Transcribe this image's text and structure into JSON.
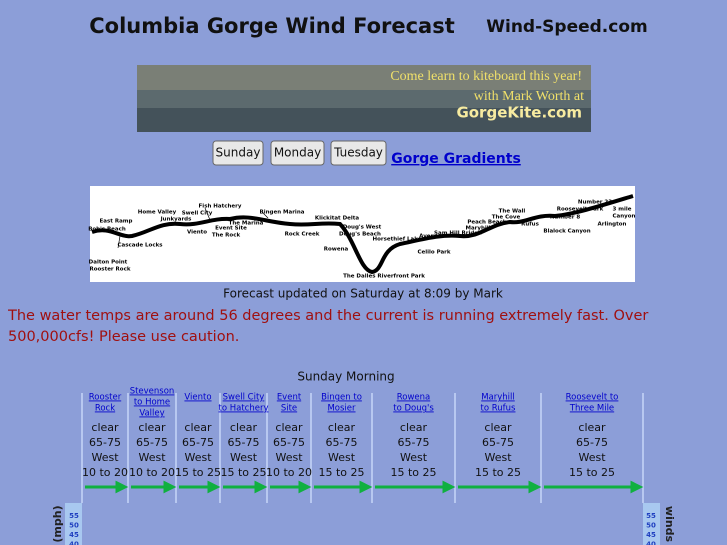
{
  "header": {
    "title": "Columbia Gorge Wind Forecast",
    "site": "Wind-Speed.com"
  },
  "banner": {
    "line1": "Come learn to kiteboard this year!",
    "line2": "with Mark Worth at",
    "line3": "GorgeKite.com"
  },
  "nav": {
    "buttons": [
      "Sunday",
      "Monday",
      "Tuesday"
    ],
    "link": "Gorge Gradients"
  },
  "map": {
    "labels": [
      "East Ramp",
      "Bob's Beach",
      "Home Valley",
      "Swell City",
      "Fish Hatchery",
      "Junkyards",
      "Viento",
      "Event Site",
      "The Rock",
      "The Marina",
      "Bingen Marina",
      "Rock Creek",
      "Klickitat Delta",
      "Doug's West",
      "Doug's Beach",
      "Rowena",
      "Horsethief Lake",
      "Avery",
      "Sam Hill Bridge",
      "Maryhill",
      "Celilo Park",
      "Cascade Locks",
      "Dalton Point",
      "Rooster Rock",
      "The Dalles Riverfront Park",
      "Peach Beach",
      "The Wall",
      "The Cove",
      "Rufus",
      "Number 8",
      "Roosevelt Park",
      "Number 23",
      "Blalock Canyon",
      "Arlington",
      "3 mile",
      "Canyon"
    ]
  },
  "updated": "Forecast updated on Saturday at 8:09 by Mark",
  "notice": "The water temps are around 56 degrees and the current is running extremely fast. Over 500,000cfs! Please use caution.",
  "forecast": {
    "title": "Sunday Morning",
    "columns": [
      {
        "site": [
          "Rooster",
          "Rock"
        ],
        "sky": "clear",
        "temp": "65-75",
        "dir": "West",
        "speed": "10 to 20"
      },
      {
        "site": [
          "Stevenson",
          "to Home",
          "Valley"
        ],
        "sky": "clear",
        "temp": "65-75",
        "dir": "West",
        "speed": "10 to 20"
      },
      {
        "site": [
          "Viento"
        ],
        "sky": "clear",
        "temp": "65-75",
        "dir": "West",
        "speed": "15 to 25"
      },
      {
        "site": [
          "Swell City",
          "to Hatchery"
        ],
        "sky": "clear",
        "temp": "65-75",
        "dir": "West",
        "speed": "15 to 25"
      },
      {
        "site": [
          "Event",
          "Site"
        ],
        "sky": "clear",
        "temp": "65-75",
        "dir": "West",
        "speed": "10 to 20"
      },
      {
        "site": [
          "Bingen to",
          "Mosier"
        ],
        "sky": "clear",
        "temp": "65-75",
        "dir": "West",
        "speed": "15 to 25"
      },
      {
        "site": [
          "Rowena",
          "to Doug's"
        ],
        "sky": "clear",
        "temp": "65-75",
        "dir": "West",
        "speed": "15 to 25"
      },
      {
        "site": [
          "Maryhill",
          "to Rufus"
        ],
        "sky": "clear",
        "temp": "65-75",
        "dir": "West",
        "speed": "15 to 25"
      },
      {
        "site": [
          "Roosevelt to",
          "Three Mile"
        ],
        "sky": "clear",
        "temp": "65-75",
        "dir": "West",
        "speed": "15 to 25"
      }
    ]
  },
  "chart": {
    "left_axis": "(mph)",
    "right_axis": "winds",
    "ticks": [
      "55",
      "50",
      "45",
      "40"
    ]
  }
}
